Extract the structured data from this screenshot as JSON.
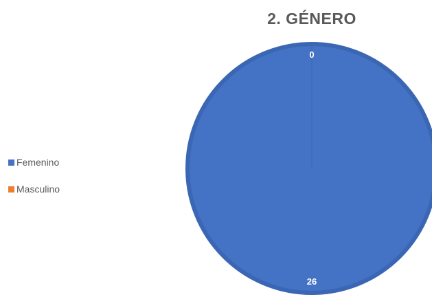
{
  "chart_data": {
    "type": "pie",
    "title": "2. GÉNERO",
    "categories": [
      "Femenino",
      "Masculino"
    ],
    "values": [
      26,
      0
    ],
    "data_labels": [
      "26",
      "0"
    ],
    "colors": [
      "#4472C4",
      "#ED7D31"
    ],
    "legend_position": "left"
  }
}
